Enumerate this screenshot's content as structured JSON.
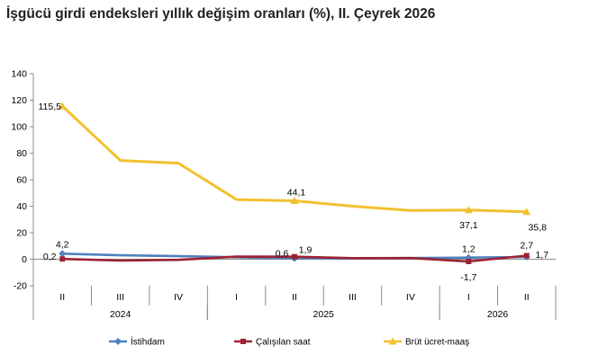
{
  "title": "İşgücü girdi endeksleri yıllık değişim oranları (%), II. Çeyrek 2026",
  "chart_data": {
    "type": "line",
    "title": "İşgücü girdi endeksleri yıllık değişim oranları (%), II. Çeyrek 2026",
    "categories": [
      "II",
      "III",
      "IV",
      "I",
      "II",
      "III",
      "IV",
      "I",
      "II"
    ],
    "years": [
      {
        "label": "2024",
        "start": 0,
        "end": 2
      },
      {
        "label": "2025",
        "start": 3,
        "end": 6
      },
      {
        "label": "2026",
        "start": 7,
        "end": 8
      }
    ],
    "y_ticks": [
      "140",
      "120",
      "100",
      "80",
      "60",
      "40",
      "20",
      "0",
      "-20"
    ],
    "ylim": [
      -20,
      140
    ],
    "grid": false,
    "legend_position": "bottom",
    "series": [
      {
        "name": "İstihdam",
        "color": "#4F81BD",
        "values": [
          4.2,
          3.0,
          2.3,
          1.5,
          0.6,
          0.7,
          0.9,
          1.2,
          1.7
        ],
        "labels": [
          {
            "index": 0,
            "text": "4,2"
          },
          {
            "index": 4,
            "text": "0,6"
          },
          {
            "index": 7,
            "text": "1,2"
          },
          {
            "index": 8,
            "text": "1,7"
          }
        ]
      },
      {
        "name": "Çalışılan saat",
        "color": "#9B2335",
        "values": [
          0.2,
          -1.0,
          -0.5,
          2.0,
          1.9,
          0.8,
          0.9,
          -1.7,
          2.7
        ],
        "labels": [
          {
            "index": 0,
            "text": "0,2"
          },
          {
            "index": 4,
            "text": "1,9"
          },
          {
            "index": 7,
            "text": "-1,7"
          },
          {
            "index": 8,
            "text": "2,7"
          }
        ]
      },
      {
        "name": "Brüt ücret-maaş",
        "color": "#F2C12E",
        "values": [
          115.5,
          74.5,
          72.5,
          45.0,
          44.1,
          40.0,
          36.8,
          37.1,
          35.8
        ],
        "labels": [
          {
            "index": 0,
            "text": "115,5"
          },
          {
            "index": 4,
            "text": "44,1"
          },
          {
            "index": 7,
            "text": "37,1"
          },
          {
            "index": 8,
            "text": "35,8"
          }
        ]
      }
    ]
  }
}
